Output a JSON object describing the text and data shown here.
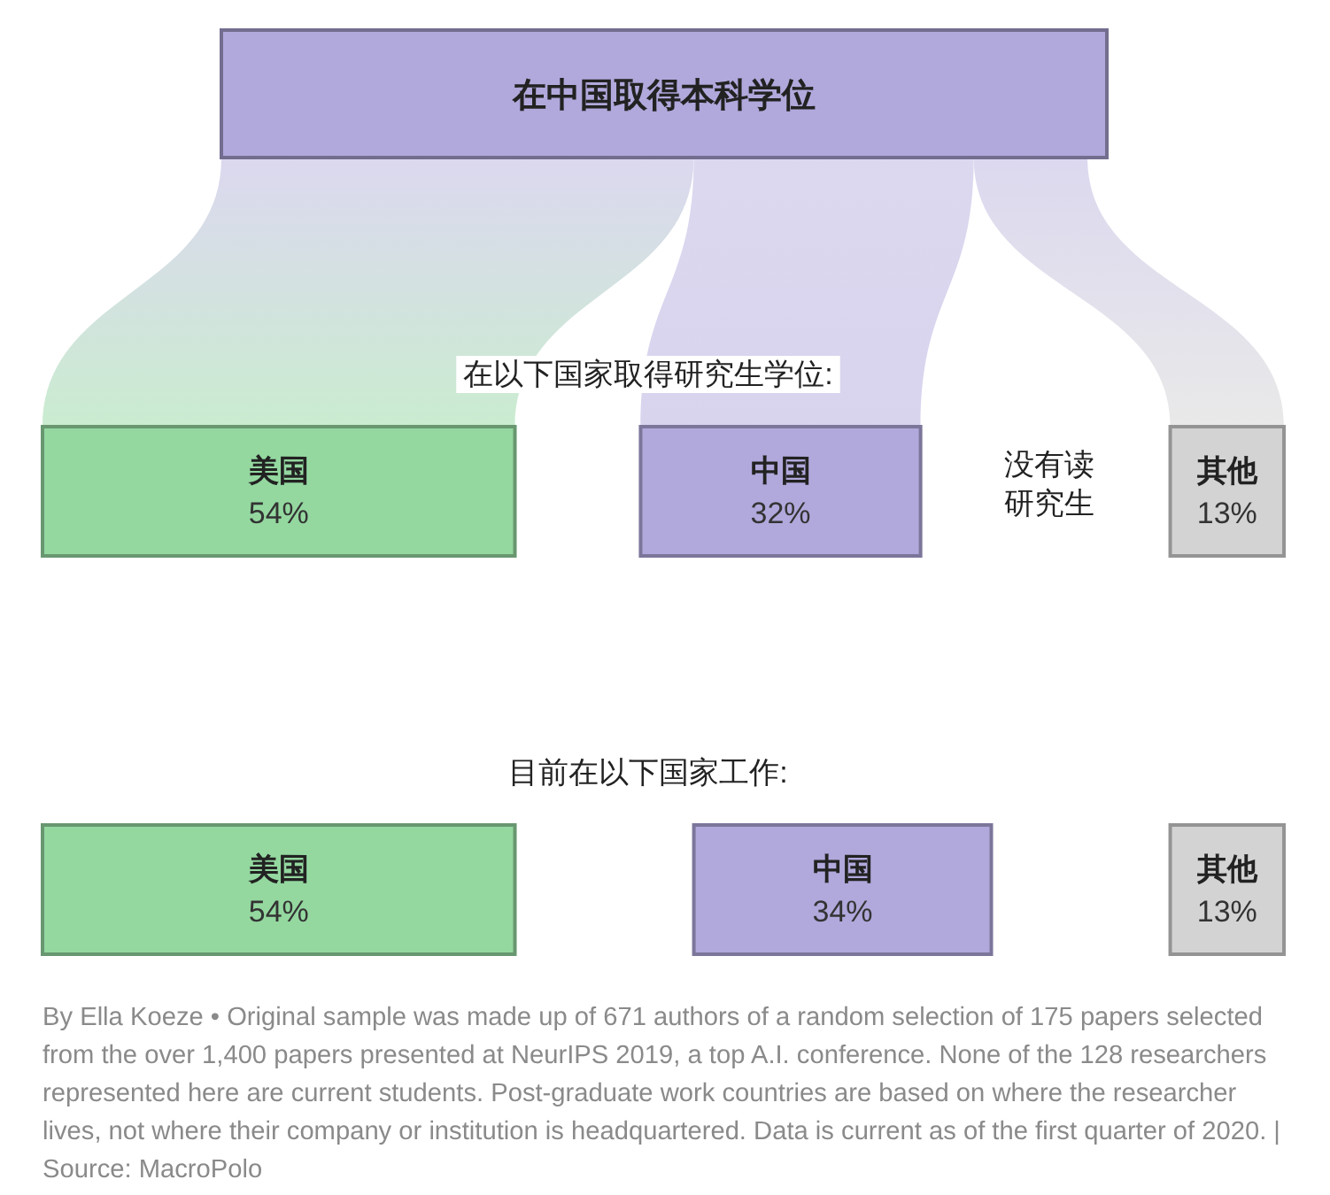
{
  "chart_data": {
    "type": "other",
    "title": "在中国取得本科学位",
    "categories": [
      "美国",
      "中国",
      "其他"
    ],
    "series": [
      {
        "name": "在以下国家取得研究生学位:",
        "values": [
          54,
          32,
          13
        ],
        "value_labels": [
          "54%",
          "32%",
          "13%"
        ],
        "colors": [
          "#94d8a0",
          "#b1a9dc",
          "#d3d3d3"
        ]
      },
      {
        "name": "目前在以下国家工作:",
        "values": [
          54,
          34,
          13
        ],
        "value_labels": [
          "54%",
          "34%",
          "13%"
        ],
        "colors": [
          "#94d8a0",
          "#b1a9dc",
          "#d3d3d3"
        ]
      }
    ],
    "annotations": [
      "没有读研究生",
      "By Ella Koeze • Original sample was made up of 671 authors of a random selection of 175 papers selected from the over 1,400 papers presented at NeurIPS 2019, a top A.I. conference. None of the 128 researchers represented here are current students. Post-graduate work countries are based on where the researcher lives, not where their company or institution is headquartered. Data is current as of the first quarter of 2020. | Source: MacroPolo"
    ]
  }
}
